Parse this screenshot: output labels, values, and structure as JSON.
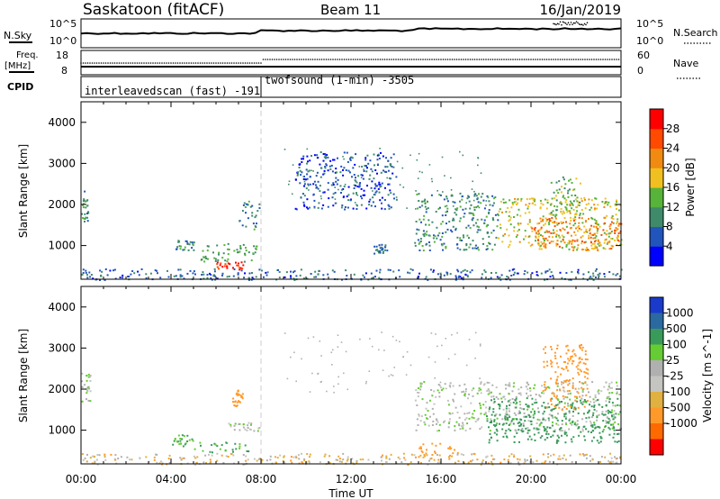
{
  "header": {
    "station": "Saskatoon (fitACF)",
    "beam": "Beam 11",
    "date": "16/Jan/2019"
  },
  "top_panels": {
    "nsky_label": "N.Sky",
    "nsky_ticks": [
      "10^5",
      "10^0"
    ],
    "nsearch_label": "N.Search",
    "nsearch_ticks": [
      "10^5",
      "10^0"
    ],
    "freq_label": "Freq.",
    "freq_unit": "[MHz]",
    "freq_ticks": [
      "18",
      "8"
    ],
    "nave_label": "Nave",
    "nave_ticks": [
      "60",
      "0"
    ],
    "cpid_label": "CPID",
    "cpid_segments": [
      {
        "name": "interleavedscan (fast) -191",
        "start_hour": 0,
        "end_hour": 8
      },
      {
        "name": "twofsound (1-min) -3505",
        "start_hour": 8,
        "end_hour": 24
      }
    ]
  },
  "colors": {
    "power_scale": [
      "#0000ff",
      "#2255bb",
      "#3f8a6b",
      "#57b33a",
      "#f0c020",
      "#f08a10",
      "#ff4a00",
      "#ff0000"
    ],
    "velocity_scale": [
      "#ff0000",
      "#ff6a00",
      "#ff9a2a",
      "#e0b040",
      "#c4c4c0",
      "#b0b0b0",
      "#66cc33",
      "#3a9a5a",
      "#2a6aa0",
      "#1a3acc"
    ],
    "ground_scatter": "#b8b8b8"
  },
  "chart_data": [
    {
      "type": "heatmap",
      "name": "power",
      "ylabel": "Slant Range [km]",
      "xlabel": "",
      "x_ticks": [
        "00:00",
        "04:00",
        "08:00",
        "12:00",
        "16:00",
        "20:00",
        "00:00"
      ],
      "xlim_hours": [
        0,
        24
      ],
      "ylim_km": [
        180,
        4500
      ],
      "y_ticks": [
        1000,
        2000,
        3000,
        4000
      ],
      "colorbar": {
        "label": "Power [dB]",
        "ticks": [
          4,
          8,
          12,
          16,
          20,
          24,
          28
        ],
        "range": [
          0,
          32
        ]
      },
      "regions": [
        {
          "x": [
            0.0,
            0.35
          ],
          "y": [
            1600,
            2350
          ],
          "value": 10
        },
        {
          "x": [
            4.0,
            5.0
          ],
          "y": [
            900,
            1150
          ],
          "value": 9
        },
        {
          "x": [
            5.3,
            7.8
          ],
          "y": [
            620,
            1100
          ],
          "value": 12
        },
        {
          "x": [
            6.0,
            7.2
          ],
          "y": [
            430,
            620
          ],
          "value": 29
        },
        {
          "x": [
            7.0,
            7.9
          ],
          "y": [
            1400,
            2100
          ],
          "value": 9
        },
        {
          "x": [
            9.5,
            14.0
          ],
          "y": [
            1900,
            3300
          ],
          "value": 6
        },
        {
          "x": [
            13.0,
            13.6
          ],
          "y": [
            820,
            1050
          ],
          "value": 8
        },
        {
          "x": [
            14.8,
            18.5
          ],
          "y": [
            900,
            2300
          ],
          "value": 10
        },
        {
          "x": [
            18.5,
            24.0
          ],
          "y": [
            900,
            2200
          ],
          "value": 17
        },
        {
          "x": [
            20.0,
            24.0
          ],
          "y": [
            900,
            1700
          ],
          "value": 23
        },
        {
          "x": [
            20.8,
            22.2
          ],
          "y": [
            1700,
            2700
          ],
          "value": 14
        },
        {
          "x": [
            0.0,
            24.0
          ],
          "y": [
            180,
            450
          ],
          "value": 7
        }
      ]
    },
    {
      "type": "heatmap",
      "name": "velocity",
      "ylabel": "Slant Range [km]",
      "xlabel": "Time UT",
      "x_ticks": [
        "00:00",
        "04:00",
        "08:00",
        "12:00",
        "16:00",
        "20:00",
        "00:00"
      ],
      "xlim_hours": [
        0,
        24
      ],
      "ylim_km": [
        180,
        4500
      ],
      "y_ticks": [
        1000,
        2000,
        3000,
        4000
      ],
      "colorbar": {
        "label": "Velocity [m s^-1]",
        "ticks": [
          "1000",
          "500",
          "100",
          "25",
          "-25",
          "-100",
          "-500",
          "-1000"
        ]
      },
      "regions": [
        {
          "x": [
            0.0,
            0.4
          ],
          "y": [
            1700,
            2400
          ],
          "value": 0
        },
        {
          "x": [
            4.0,
            5.2
          ],
          "y": [
            550,
            900
          ],
          "value": 100
        },
        {
          "x": [
            5.2,
            7.5
          ],
          "y": [
            480,
            720
          ],
          "value": 120
        },
        {
          "x": [
            6.7,
            7.2
          ],
          "y": [
            1600,
            2000
          ],
          "value": -300
        },
        {
          "x": [
            6.5,
            8.0
          ],
          "y": [
            1000,
            1200
          ],
          "value": 0
        },
        {
          "x": [
            14.8,
            24.0
          ],
          "y": [
            1000,
            2200
          ],
          "value": 0
        },
        {
          "x": [
            18.0,
            24.0
          ],
          "y": [
            700,
            1800
          ],
          "value": 400
        },
        {
          "x": [
            20.5,
            22.5
          ],
          "y": [
            1500,
            3100
          ],
          "value": -200
        },
        {
          "x": [
            15.0,
            16.8
          ],
          "y": [
            400,
            700
          ],
          "value": -150
        },
        {
          "x": [
            0.0,
            24.0
          ],
          "y": [
            180,
            450
          ],
          "value": -60
        }
      ]
    }
  ]
}
